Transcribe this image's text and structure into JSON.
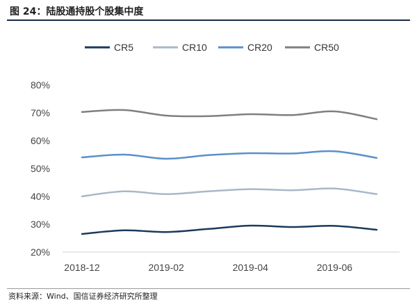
{
  "figure": {
    "title": "图 24：陆股通持股个股集中度",
    "source": "资料来源：Wind、国信证券经济研究所整理"
  },
  "chart_data": {
    "type": "line",
    "title": "",
    "xlabel": "",
    "ylabel": "",
    "x": [
      "2018-12",
      "2019-01",
      "2019-02",
      "2019-03",
      "2019-04",
      "2019-05",
      "2019-06",
      "2019-07"
    ],
    "x_tick_labels": [
      "2018-12",
      "2019-02",
      "2019-04",
      "2019-06"
    ],
    "y_ticks": [
      "20%",
      "30%",
      "40%",
      "50%",
      "60%",
      "70%",
      "80%"
    ],
    "ylim": [
      20,
      80
    ],
    "y_unit": "%",
    "grid": false,
    "legend": "top",
    "series": [
      {
        "name": "CR5",
        "color": "#1b3a5c",
        "values": [
          26.5,
          27.8,
          27.2,
          28.3,
          29.5,
          29.0,
          29.4,
          28.0
        ]
      },
      {
        "name": "CR10",
        "color": "#a9b8c8",
        "values": [
          40.0,
          41.8,
          40.8,
          41.8,
          42.6,
          42.2,
          42.8,
          40.8
        ]
      },
      {
        "name": "CR20",
        "color": "#5b8fcb",
        "values": [
          54.0,
          55.0,
          53.5,
          54.8,
          55.5,
          55.4,
          56.2,
          53.8
        ]
      },
      {
        "name": "CR50",
        "color": "#7f7f7f",
        "values": [
          70.3,
          71.0,
          69.0,
          68.8,
          69.5,
          69.2,
          70.5,
          67.7
        ]
      }
    ]
  }
}
